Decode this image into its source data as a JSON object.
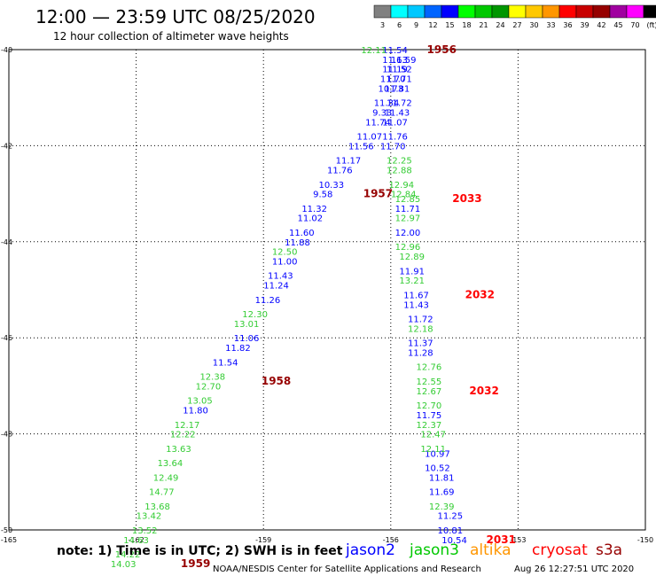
{
  "header": {
    "title": "12:00 — 23:59 UTC 08/25/2020",
    "subtitle": "12 hour collection of altimeter wave heights"
  },
  "scale": {
    "labels": [
      "3",
      "6",
      "9",
      "12",
      "15",
      "18",
      "21",
      "24",
      "27",
      "30",
      "33",
      "36",
      "39",
      "42",
      "45",
      "70",
      "(ft)"
    ],
    "colors": [
      "#808080",
      "#00ffff",
      "#00c8ff",
      "#0064ff",
      "#0000ff",
      "#00ff00",
      "#00c800",
      "#009600",
      "#ffff00",
      "#ffc800",
      "#ff9600",
      "#ff0000",
      "#c80000",
      "#960000",
      "#a000a0",
      "#ff00ff",
      "#000000"
    ]
  },
  "footer": {
    "note": "note: 1) Time is in UTC; 2) SWH is in feet",
    "credit": "NOAA/NESDIS Center for Satellite Applications and Research",
    "timestamp": "Aug 26 12:27:51 UTC 2020",
    "legend": [
      {
        "name": "jason2",
        "color": "#0000ff"
      },
      {
        "name": "jason3",
        "color": "#00c800"
      },
      {
        "name": "altika",
        "color": "#ff9600"
      },
      {
        "name": "cryosat",
        "color": "#ff0000"
      },
      {
        "name": "s3a",
        "color": "#960000"
      }
    ]
  },
  "chart_data": {
    "type": "scatter",
    "title": "12:00 — 23:59 UTC 08/25/2020",
    "xlim": [
      -165,
      -150
    ],
    "ylim": [
      -50,
      -40
    ],
    "x_ticks": [
      "-165",
      "-162",
      "-159",
      "-156",
      "-153",
      "-150"
    ],
    "y_ticks": [
      "-40",
      "-42",
      "-44",
      "-46",
      "-48",
      "-50"
    ],
    "grid": true,
    "series": [
      {
        "name": "jason2",
        "color": "#0000ff",
        "points": [
          {
            "x": -155.9,
            "y": -40.0,
            "label": "11.54"
          },
          {
            "x": -155.9,
            "y": -40.2,
            "label": "11.63"
          },
          {
            "x": -155.7,
            "y": -40.2,
            "label": "11.59"
          },
          {
            "x": -155.9,
            "y": -40.4,
            "label": "11.19"
          },
          {
            "x": -155.8,
            "y": -40.4,
            "label": "11.52"
          },
          {
            "x": -155.95,
            "y": -40.6,
            "label": "11.70"
          },
          {
            "x": -155.8,
            "y": -40.6,
            "label": "11.71"
          },
          {
            "x": -156.0,
            "y": -40.8,
            "label": "10.73"
          },
          {
            "x": -155.85,
            "y": -40.8,
            "label": "11.81"
          },
          {
            "x": -156.1,
            "y": -41.1,
            "label": "11.34"
          },
          {
            "x": -155.8,
            "y": -41.1,
            "label": "11.72"
          },
          {
            "x": -156.2,
            "y": -41.3,
            "label": "9.33"
          },
          {
            "x": -155.85,
            "y": -41.3,
            "label": "11.43"
          },
          {
            "x": -156.3,
            "y": -41.5,
            "label": "11.74"
          },
          {
            "x": -155.9,
            "y": -41.5,
            "label": "11.07"
          },
          {
            "x": -156.5,
            "y": -41.8,
            "label": "11.07"
          },
          {
            "x": -155.9,
            "y": -41.8,
            "label": "11.76"
          },
          {
            "x": -156.7,
            "y": -42.0,
            "label": "11.56"
          },
          {
            "x": -155.95,
            "y": -42.0,
            "label": "11.70"
          },
          {
            "x": -157.0,
            "y": -42.3,
            "label": "11.17"
          },
          {
            "x": -157.2,
            "y": -42.5,
            "label": "11.76"
          },
          {
            "x": -157.4,
            "y": -42.8,
            "label": "10.33"
          },
          {
            "x": -157.6,
            "y": -43.0,
            "label": "9.58"
          },
          {
            "x": -157.8,
            "y": -43.3,
            "label": "11.32"
          },
          {
            "x": -155.6,
            "y": -43.3,
            "label": "11.71"
          },
          {
            "x": -157.9,
            "y": -43.5,
            "label": "11.02"
          },
          {
            "x": -158.1,
            "y": -43.8,
            "label": "11.60"
          },
          {
            "x": -155.6,
            "y": -43.8,
            "label": "12.00"
          },
          {
            "x": -158.2,
            "y": -44.0,
            "label": "11.88"
          },
          {
            "x": -158.5,
            "y": -44.4,
            "label": "11.00"
          },
          {
            "x": -155.5,
            "y": -44.6,
            "label": "11.91"
          },
          {
            "x": -158.6,
            "y": -44.7,
            "label": "11.43"
          },
          {
            "x": -158.7,
            "y": -44.9,
            "label": "11.24"
          },
          {
            "x": -155.4,
            "y": -45.1,
            "label": "11.67"
          },
          {
            "x": -158.9,
            "y": -45.2,
            "label": "11.26"
          },
          {
            "x": -155.4,
            "y": -45.3,
            "label": "11.43"
          },
          {
            "x": -155.3,
            "y": -45.6,
            "label": "11.72"
          },
          {
            "x": -159.4,
            "y": -46.0,
            "label": "11.06"
          },
          {
            "x": -155.3,
            "y": -46.1,
            "label": "11.37"
          },
          {
            "x": -159.6,
            "y": -46.2,
            "label": "11.82"
          },
          {
            "x": -155.3,
            "y": -46.3,
            "label": "11.28"
          },
          {
            "x": -159.9,
            "y": -46.5,
            "label": "11.54"
          },
          {
            "x": -160.6,
            "y": -47.5,
            "label": "11.80"
          },
          {
            "x": -155.1,
            "y": -47.6,
            "label": "11.75"
          },
          {
            "x": -154.9,
            "y": -48.4,
            "label": "10.97"
          },
          {
            "x": -154.9,
            "y": -48.7,
            "label": "10.52"
          },
          {
            "x": -154.8,
            "y": -48.9,
            "label": "11.81"
          },
          {
            "x": -154.8,
            "y": -49.2,
            "label": "11.69"
          },
          {
            "x": -154.6,
            "y": -49.7,
            "label": "11.25"
          },
          {
            "x": -154.6,
            "y": -50.0,
            "label": "10.81"
          },
          {
            "x": -154.5,
            "y": -50.2,
            "label": "10.54"
          }
        ]
      },
      {
        "name": "jason3",
        "color": "#00c800",
        "points": [
          {
            "x": -156.4,
            "y": -40.0,
            "label": "12.11"
          },
          {
            "x": -155.8,
            "y": -42.3,
            "label": "12.25"
          },
          {
            "x": -155.8,
            "y": -42.5,
            "label": "12.88"
          },
          {
            "x": -155.75,
            "y": -42.8,
            "label": "12.94"
          },
          {
            "x": -155.7,
            "y": -43.0,
            "label": "12.84"
          },
          {
            "x": -155.6,
            "y": -43.1,
            "label": "12.85"
          },
          {
            "x": -155.6,
            "y": -43.5,
            "label": "12.97"
          },
          {
            "x": -155.6,
            "y": -44.1,
            "label": "12.96"
          },
          {
            "x": -158.5,
            "y": -44.2,
            "label": "12.50"
          },
          {
            "x": -155.5,
            "y": -44.3,
            "label": "12.89"
          },
          {
            "x": -155.5,
            "y": -44.8,
            "label": "13.21"
          },
          {
            "x": -159.2,
            "y": -45.5,
            "label": "12.30"
          },
          {
            "x": -159.4,
            "y": -45.7,
            "label": "13.01"
          },
          {
            "x": -155.3,
            "y": -45.8,
            "label": "12.18"
          },
          {
            "x": -155.1,
            "y": -46.6,
            "label": "12.76"
          },
          {
            "x": -160.2,
            "y": -46.8,
            "label": "12.38"
          },
          {
            "x": -155.1,
            "y": -46.9,
            "label": "12.55"
          },
          {
            "x": -160.3,
            "y": -47.0,
            "label": "12.70"
          },
          {
            "x": -155.1,
            "y": -47.1,
            "label": "12.67"
          },
          {
            "x": -160.5,
            "y": -47.3,
            "label": "13.05"
          },
          {
            "x": -155.1,
            "y": -47.4,
            "label": "12.70"
          },
          {
            "x": -160.8,
            "y": -47.8,
            "label": "12.17"
          },
          {
            "x": -155.1,
            "y": -47.8,
            "label": "12.37"
          },
          {
            "x": -160.9,
            "y": -48.0,
            "label": "12.22"
          },
          {
            "x": -155.0,
            "y": -48.0,
            "label": "12.47"
          },
          {
            "x": -161.0,
            "y": -48.3,
            "label": "13.63"
          },
          {
            "x": -155.0,
            "y": -48.3,
            "label": "12.11"
          },
          {
            "x": -161.2,
            "y": -48.6,
            "label": "13.64"
          },
          {
            "x": -161.3,
            "y": -48.9,
            "label": "12.49"
          },
          {
            "x": -161.4,
            "y": -49.2,
            "label": "14.77"
          },
          {
            "x": -161.5,
            "y": -49.5,
            "label": "13.68"
          },
          {
            "x": -154.8,
            "y": -49.5,
            "label": "12.39"
          },
          {
            "x": -161.7,
            "y": -49.7,
            "label": "13.42"
          },
          {
            "x": -161.8,
            "y": -50.0,
            "label": "13.52"
          },
          {
            "x": -162.0,
            "y": -50.2,
            "label": "14.63"
          },
          {
            "x": -162.2,
            "y": -50.5,
            "label": "14.22"
          },
          {
            "x": -162.3,
            "y": -50.7,
            "label": "14.03"
          }
        ]
      },
      {
        "name": "altika",
        "color": "#ff9600",
        "points": []
      },
      {
        "name": "cryosat",
        "color": "#ff0000",
        "points": []
      },
      {
        "name": "s3a",
        "color": "#960000",
        "points": []
      }
    ],
    "time_labels": [
      {
        "x": -154.8,
        "y": -40.0,
        "label": "1956",
        "color": "#960000"
      },
      {
        "x": -156.3,
        "y": -43.0,
        "label": "1957",
        "color": "#960000"
      },
      {
        "x": -154.2,
        "y": -43.1,
        "label": "2033",
        "color": "#ff0000"
      },
      {
        "x": -153.9,
        "y": -45.1,
        "label": "2032",
        "color": "#ff0000"
      },
      {
        "x": -158.7,
        "y": -46.9,
        "label": "1958",
        "color": "#960000"
      },
      {
        "x": -153.8,
        "y": -47.1,
        "label": "2032",
        "color": "#ff0000"
      },
      {
        "x": -153.4,
        "y": -50.2,
        "label": "2031",
        "color": "#ff0000"
      },
      {
        "x": -160.6,
        "y": -50.7,
        "label": "1959",
        "color": "#960000"
      }
    ]
  }
}
